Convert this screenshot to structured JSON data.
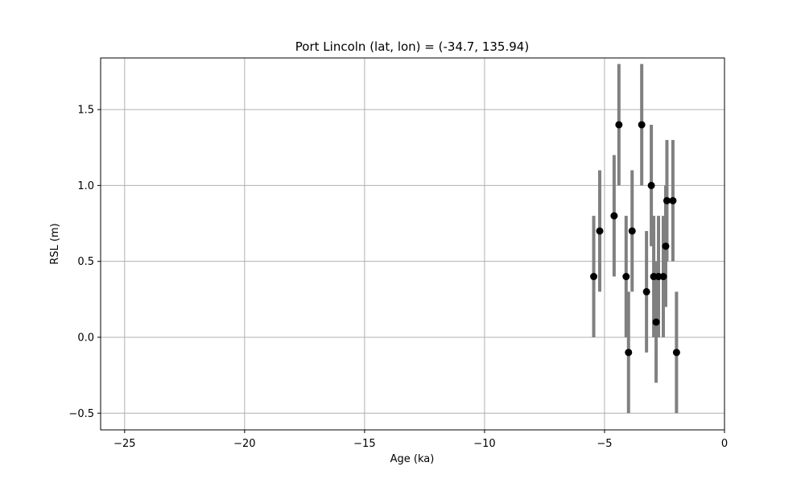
{
  "chart_data": {
    "type": "scatter",
    "title": "Port Lincoln (lat, lon) = (-34.7, 135.94)",
    "xlabel": "Age (ka)",
    "ylabel": "RSL (m)",
    "xlim": [
      -26,
      0
    ],
    "ylim": [
      -0.61,
      1.84
    ],
    "xticks": [
      -25,
      -20,
      -15,
      -10,
      -5,
      0
    ],
    "xtick_labels": [
      "−25",
      "−20",
      "−15",
      "−10",
      "−5",
      "0"
    ],
    "yticks": [
      -0.5,
      0.0,
      0.5,
      1.0,
      1.5
    ],
    "ytick_labels": [
      "−0.5",
      "0.0",
      "0.5",
      "1.0",
      "1.5"
    ],
    "grid": true,
    "legend": "none",
    "colors": {
      "marker": "#000000",
      "errorbar": "#808080",
      "grid": "#b0b0b0",
      "axes": "#000000"
    },
    "points": [
      {
        "x": -5.45,
        "y": 0.4,
        "ylow": 0.0,
        "yhigh": 0.8
      },
      {
        "x": -5.2,
        "y": 0.7,
        "ylow": 0.3,
        "yhigh": 1.1
      },
      {
        "x": -4.6,
        "y": 0.8,
        "ylow": 0.4,
        "yhigh": 1.2
      },
      {
        "x": -4.4,
        "y": 1.4,
        "ylow": 1.0,
        "yhigh": 1.8
      },
      {
        "x": -4.1,
        "y": 0.4,
        "ylow": 0.0,
        "yhigh": 0.8
      },
      {
        "x": -4.0,
        "y": -0.1,
        "ylow": -0.5,
        "yhigh": 0.3
      },
      {
        "x": -3.85,
        "y": 0.7,
        "ylow": 0.3,
        "yhigh": 1.1
      },
      {
        "x": -3.45,
        "y": 1.4,
        "ylow": 1.0,
        "yhigh": 1.8
      },
      {
        "x": -3.25,
        "y": 0.3,
        "ylow": -0.1,
        "yhigh": 0.7
      },
      {
        "x": -3.05,
        "y": 1.0,
        "ylow": 0.6,
        "yhigh": 1.4
      },
      {
        "x": -2.95,
        "y": 0.4,
        "ylow": 0.0,
        "yhigh": 0.8
      },
      {
        "x": -2.85,
        "y": 0.1,
        "ylow": -0.3,
        "yhigh": 0.5
      },
      {
        "x": -2.75,
        "y": 0.4,
        "ylow": 0.0,
        "yhigh": 0.8
      },
      {
        "x": -2.55,
        "y": 0.4,
        "ylow": 0.0,
        "yhigh": 0.8
      },
      {
        "x": -2.45,
        "y": 0.6,
        "ylow": 0.2,
        "yhigh": 1.0
      },
      {
        "x": -2.4,
        "y": 0.9,
        "ylow": 0.5,
        "yhigh": 1.3
      },
      {
        "x": -2.15,
        "y": 0.9,
        "ylow": 0.5,
        "yhigh": 1.3
      },
      {
        "x": -2.0,
        "y": -0.1,
        "ylow": -0.5,
        "yhigh": 0.3
      }
    ]
  }
}
